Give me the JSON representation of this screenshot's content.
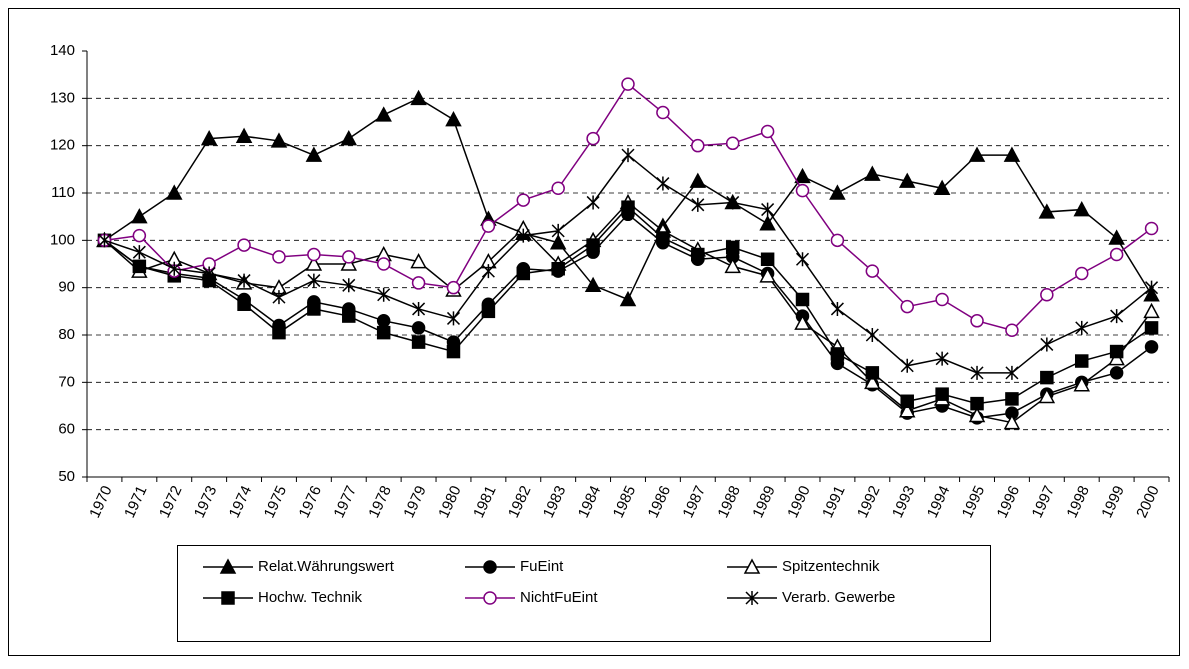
{
  "chart_data": {
    "type": "line",
    "categories": [
      "1970",
      "1971",
      "1972",
      "1973",
      "1974",
      "1975",
      "1976",
      "1977",
      "1978",
      "1979",
      "1980",
      "1981",
      "1982",
      "1983",
      "1984",
      "1985",
      "1986",
      "1987",
      "1988",
      "1989",
      "1990",
      "1991",
      "1992",
      "1993",
      "1994",
      "1995",
      "1996",
      "1997",
      "1998",
      "1999",
      "2000"
    ],
    "ylim": [
      50,
      140
    ],
    "yticks": [
      50,
      60,
      70,
      80,
      90,
      100,
      110,
      120,
      130,
      140
    ],
    "grid": true,
    "series": [
      {
        "name": "Relat.Währungswert",
        "color": "#000000",
        "marker": "filled-triangle",
        "values": [
          100,
          105,
          110,
          121.5,
          122,
          121,
          118,
          121.5,
          126.5,
          130,
          125.5,
          104.5,
          101.5,
          99.5,
          90.5,
          87.5,
          103,
          112.5,
          108,
          103.5,
          113.5,
          110,
          114,
          112.5,
          111,
          118,
          118,
          106,
          106.5,
          100.5,
          88.5
        ]
      },
      {
        "name": "FuEint",
        "color": "#000000",
        "marker": "filled-circle",
        "values": [
          100,
          94.5,
          93,
          92,
          87.5,
          82,
          87,
          85.5,
          83,
          81.5,
          78.5,
          86.5,
          94,
          93.5,
          97.5,
          105.5,
          99.5,
          96,
          96.5,
          93,
          84,
          74,
          69.5,
          63.5,
          65,
          62.5,
          63.5,
          67.5,
          70,
          72,
          77.5
        ]
      },
      {
        "name": "Spitzentechnik",
        "color": "#000000",
        "marker": "open-triangle",
        "values": [
          100,
          93.5,
          96,
          93,
          91,
          90,
          95,
          95,
          97,
          95.5,
          89.5,
          95.5,
          102.5,
          95,
          100,
          108,
          102,
          98,
          94.5,
          92.5,
          82.5,
          77.5,
          70,
          64,
          66.5,
          63,
          61.5,
          67,
          69.5,
          75,
          85
        ]
      },
      {
        "name": "Hochw. Technik",
        "color": "#000000",
        "marker": "filled-square",
        "values": [
          100,
          94.5,
          92.5,
          91.5,
          86.5,
          80.5,
          85.5,
          84,
          80.5,
          78.5,
          76.5,
          85,
          93,
          94,
          99,
          107,
          100.5,
          97,
          98.5,
          96,
          87.5,
          76,
          72,
          66,
          67.5,
          65.5,
          66.5,
          71,
          74.5,
          76.5,
          81.5
        ]
      },
      {
        "name": "NichtFuEint",
        "color": "#800080",
        "marker": "open-circle",
        "values": [
          100,
          101,
          93.5,
          95,
          99,
          96.5,
          97,
          96.5,
          95,
          91,
          90,
          103,
          108.5,
          111,
          121.5,
          133,
          127,
          120,
          120.5,
          123,
          110.5,
          100,
          93.5,
          86,
          87.5,
          83,
          81,
          88.5,
          93,
          97,
          102.5
        ]
      },
      {
        "name": "Verarb. Gewerbe",
        "color": "#000000",
        "marker": "asterisk",
        "values": [
          100,
          97.5,
          94,
          93,
          91.5,
          88,
          91.5,
          90.5,
          88.5,
          85.5,
          83.5,
          93.5,
          101,
          102,
          108,
          118,
          112,
          107.5,
          108,
          106.5,
          96,
          85.5,
          80,
          73.5,
          75,
          72,
          72,
          78,
          81.5,
          84,
          90
        ]
      }
    ]
  }
}
